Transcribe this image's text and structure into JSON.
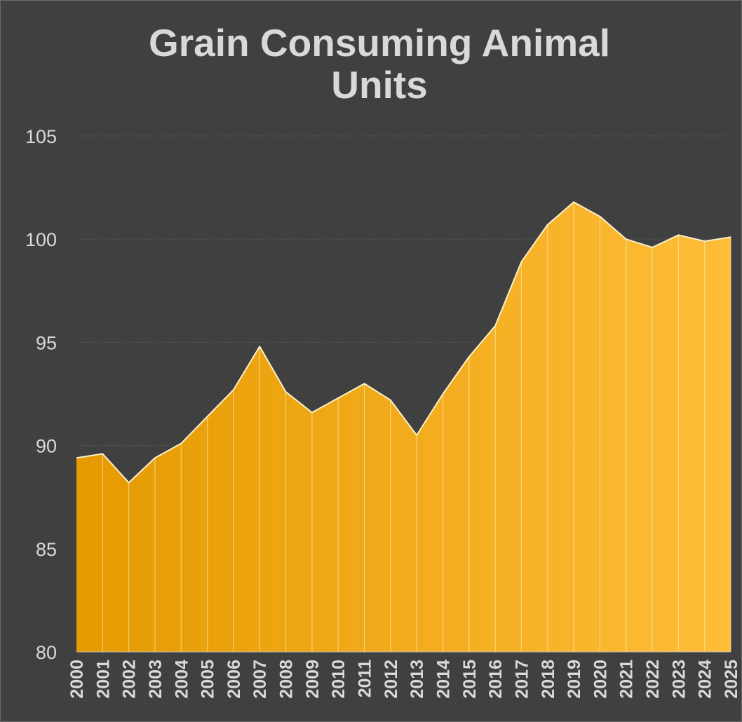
{
  "chart_data": {
    "type": "area",
    "title": "Grain Consuming Animal Units",
    "xlabel": "",
    "ylabel": "",
    "ylim": [
      80,
      105
    ],
    "yticks": [
      "80",
      "85",
      "90",
      "95",
      "100",
      "105"
    ],
    "grid": "horizontal dotted",
    "legend": "none",
    "x": [
      "2000",
      "2001",
      "2002",
      "2003",
      "2004",
      "2005",
      "2006",
      "2007",
      "2008",
      "2009",
      "2010",
      "2011",
      "2012",
      "2013",
      "2014",
      "2015",
      "2016",
      "2017",
      "2018",
      "2019",
      "2020",
      "2021",
      "2022",
      "2023",
      "2024",
      "2025"
    ],
    "values": [
      89.4,
      89.6,
      88.2,
      89.4,
      90.1,
      91.4,
      92.7,
      94.8,
      92.6,
      91.6,
      92.3,
      93.0,
      92.2,
      90.5,
      92.5,
      94.3,
      95.8,
      98.9,
      100.7,
      101.8,
      101.1,
      100.0,
      99.6,
      100.2,
      99.9,
      100.1
    ]
  },
  "colors": {
    "background": "#404040",
    "text": "#d9d9d9",
    "fill_start": "#e59a00",
    "fill_end": "#ffbd38",
    "outline": "#fff1cc",
    "grid": "#5e5e5e"
  }
}
